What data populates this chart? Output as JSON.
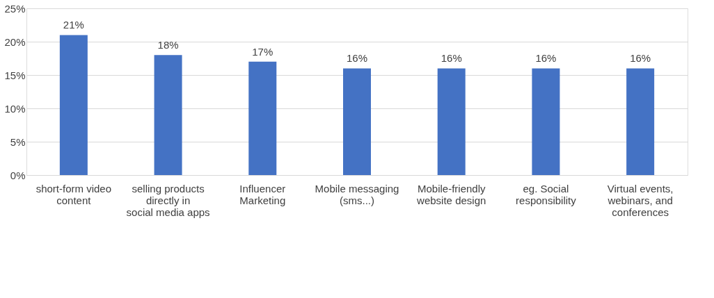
{
  "chart_data": {
    "type": "bar",
    "categories": [
      "short-form video content",
      "selling products directly in social media apps",
      "Influencer Marketing",
      "Mobile messaging (sms...)",
      "Mobile-friendly website design",
      "eg. Social responsibility",
      "Virtual events, webinars, and conferences"
    ],
    "values": [
      21,
      18,
      17,
      16,
      16,
      16,
      16
    ],
    "value_labels": [
      "21%",
      "18%",
      "17%",
      "16%",
      "16%",
      "16%",
      "16%"
    ],
    "color": "#4472c4",
    "ylim": [
      0,
      25
    ],
    "yticks": [
      {
        "value": 0,
        "label": "0%"
      },
      {
        "value": 5,
        "label": "5%"
      },
      {
        "value": 10,
        "label": "10%"
      },
      {
        "value": 15,
        "label": "15%"
      },
      {
        "value": 20,
        "label": "20%"
      },
      {
        "value": 25,
        "label": "25%"
      }
    ],
    "grid": "y"
  }
}
